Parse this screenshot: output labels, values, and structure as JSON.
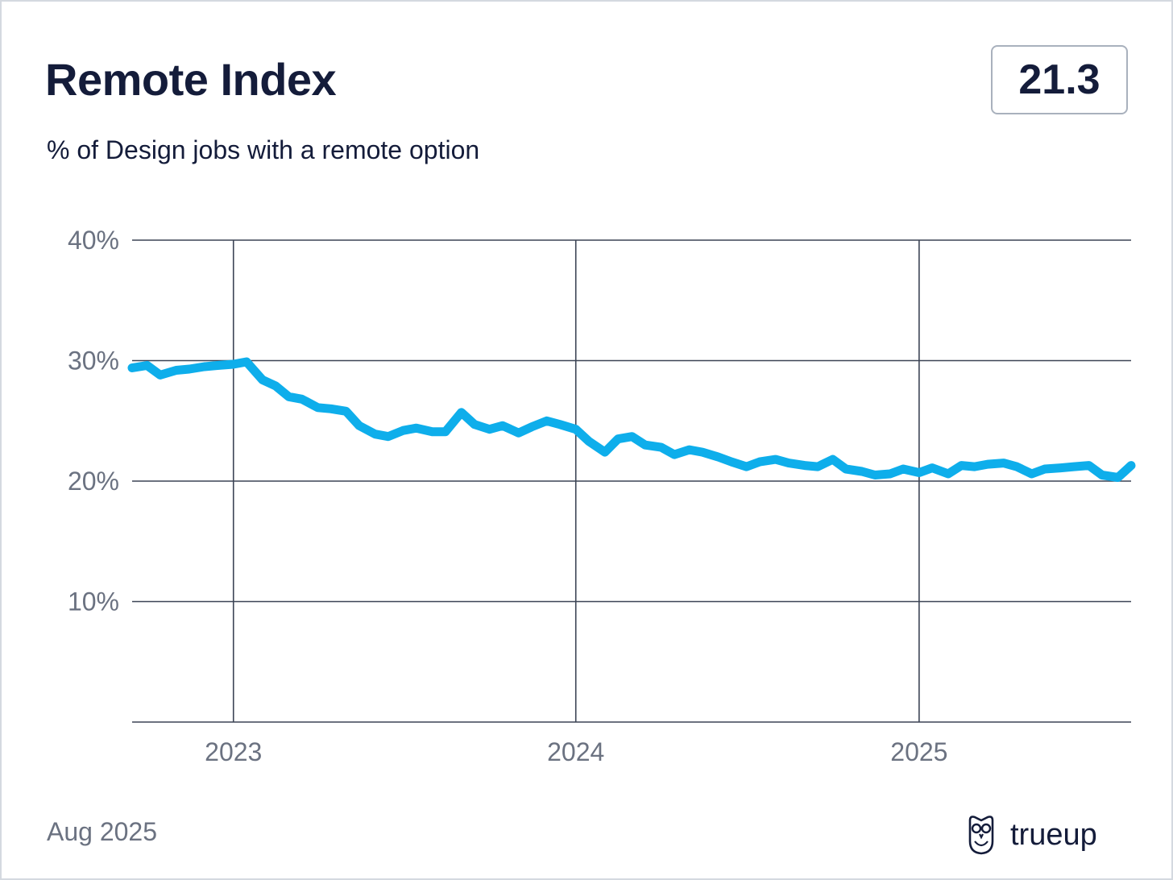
{
  "header": {
    "title": "Remote Index",
    "subtitle": "% of Design jobs with a remote option",
    "current_value": "21.3"
  },
  "footer": {
    "date": "Aug 2025",
    "brand": "trueup",
    "brand_icon": "owl-icon"
  },
  "colors": {
    "line": "#0eaeeb",
    "grid": "#3c4455",
    "text": "#141c3a",
    "muted": "#6b7281"
  },
  "chart_data": {
    "type": "line",
    "title": "Remote Index",
    "subtitle": "% of Design jobs with a remote option",
    "xlabel": "",
    "ylabel": "",
    "x_ticks": [
      "2023",
      "2024",
      "2025"
    ],
    "y_ticks": [
      "40%",
      "30%",
      "20%",
      "10%"
    ],
    "ylim": [
      0,
      40
    ],
    "xlim": [
      "2022-09-15",
      "2025-08-15"
    ],
    "grid": true,
    "series": [
      {
        "values": [
          [
            "2022-09-15",
            29.4
          ],
          [
            "2022-10-01",
            29.6
          ],
          [
            "2022-10-15",
            28.8
          ],
          [
            "2022-11-01",
            29.2
          ],
          [
            "2022-11-15",
            29.3
          ],
          [
            "2022-12-01",
            29.5
          ],
          [
            "2022-12-15",
            29.6
          ],
          [
            "2023-01-01",
            29.7
          ],
          [
            "2023-01-15",
            29.9
          ],
          [
            "2023-02-01",
            28.4
          ],
          [
            "2023-02-15",
            27.9
          ],
          [
            "2023-03-01",
            27.0
          ],
          [
            "2023-03-15",
            26.8
          ],
          [
            "2023-04-01",
            26.1
          ],
          [
            "2023-04-15",
            26.0
          ],
          [
            "2023-05-01",
            25.8
          ],
          [
            "2023-05-15",
            24.6
          ],
          [
            "2023-06-01",
            23.9
          ],
          [
            "2023-06-15",
            23.7
          ],
          [
            "2023-07-01",
            24.2
          ],
          [
            "2023-07-15",
            24.4
          ],
          [
            "2023-08-01",
            24.1
          ],
          [
            "2023-08-15",
            24.1
          ],
          [
            "2023-09-01",
            25.7
          ],
          [
            "2023-09-15",
            24.7
          ],
          [
            "2023-10-01",
            24.3
          ],
          [
            "2023-10-15",
            24.6
          ],
          [
            "2023-11-01",
            24.0
          ],
          [
            "2023-11-15",
            24.5
          ],
          [
            "2023-12-01",
            25.0
          ],
          [
            "2023-12-15",
            24.7
          ],
          [
            "2024-01-01",
            24.3
          ],
          [
            "2024-01-15",
            23.3
          ],
          [
            "2024-02-01",
            22.4
          ],
          [
            "2024-02-15",
            23.5
          ],
          [
            "2024-03-01",
            23.7
          ],
          [
            "2024-03-15",
            23.0
          ],
          [
            "2024-04-01",
            22.8
          ],
          [
            "2024-04-15",
            22.2
          ],
          [
            "2024-05-01",
            22.6
          ],
          [
            "2024-05-15",
            22.4
          ],
          [
            "2024-06-01",
            22.0
          ],
          [
            "2024-06-15",
            21.6
          ],
          [
            "2024-07-01",
            21.2
          ],
          [
            "2024-07-15",
            21.6
          ],
          [
            "2024-08-01",
            21.8
          ],
          [
            "2024-08-15",
            21.5
          ],
          [
            "2024-09-01",
            21.3
          ],
          [
            "2024-09-15",
            21.2
          ],
          [
            "2024-10-01",
            21.8
          ],
          [
            "2024-10-15",
            21.0
          ],
          [
            "2024-11-01",
            20.8
          ],
          [
            "2024-11-15",
            20.5
          ],
          [
            "2024-12-01",
            20.6
          ],
          [
            "2024-12-15",
            21.0
          ],
          [
            "2025-01-01",
            20.7
          ],
          [
            "2025-01-15",
            21.1
          ],
          [
            "2025-02-01",
            20.6
          ],
          [
            "2025-02-15",
            21.3
          ],
          [
            "2025-03-01",
            21.2
          ],
          [
            "2025-03-15",
            21.4
          ],
          [
            "2025-04-01",
            21.5
          ],
          [
            "2025-04-15",
            21.2
          ],
          [
            "2025-05-01",
            20.6
          ],
          [
            "2025-05-15",
            21.0
          ],
          [
            "2025-06-01",
            21.1
          ],
          [
            "2025-06-15",
            21.2
          ],
          [
            "2025-07-01",
            21.3
          ],
          [
            "2025-07-15",
            20.5
          ],
          [
            "2025-08-01",
            20.3
          ],
          [
            "2025-08-15",
            21.3
          ]
        ]
      }
    ]
  }
}
